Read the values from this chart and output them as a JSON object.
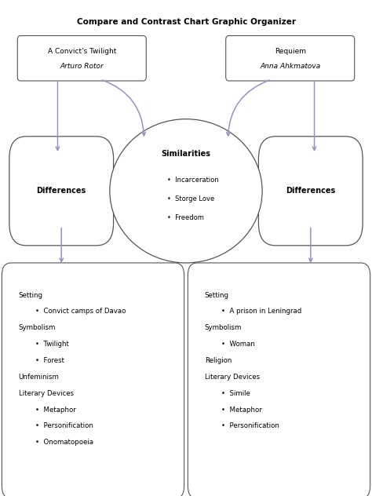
{
  "title": "Compare and Contrast Chart Graphic Organizer",
  "title_fontsize": 7.5,
  "bg_color": "#ffffff",
  "border_color": "#555555",
  "arrow_color": "#9b8fc4",
  "left_box_title": "A Convict's Twilight",
  "left_box_subtitle": "Arturo Rotor",
  "right_box_title": "Requiem",
  "right_box_subtitle": "Anna Ahkmatova",
  "differences_label": "Differences",
  "similarities_label": "Similarities",
  "similarities_items": [
    "Incarceration",
    "Storge Love",
    "Freedom"
  ],
  "left_diff_labels": [
    [
      "Setting",
      false
    ],
    [
      "•  Convict camps of Davao",
      true
    ],
    [
      "Symbolism",
      false
    ],
    [
      "•  Twilight",
      true
    ],
    [
      "•  Forest",
      true
    ],
    [
      "Unfeminism",
      false
    ],
    [
      "Literary Devices",
      false
    ],
    [
      "•  Metaphor",
      true
    ],
    [
      "•  Personification",
      true
    ],
    [
      "•  Onomatopoeia",
      true
    ]
  ],
  "right_diff_labels": [
    [
      "Setting",
      false
    ],
    [
      "•  A prison in Leningrad",
      true
    ],
    [
      "Symbolism",
      false
    ],
    [
      "•  Woman",
      true
    ],
    [
      "Religion",
      false
    ],
    [
      "Literary Devices",
      false
    ],
    [
      "•  Simile",
      true
    ],
    [
      "•  Metaphor",
      true
    ],
    [
      "•  Personification",
      true
    ]
  ]
}
